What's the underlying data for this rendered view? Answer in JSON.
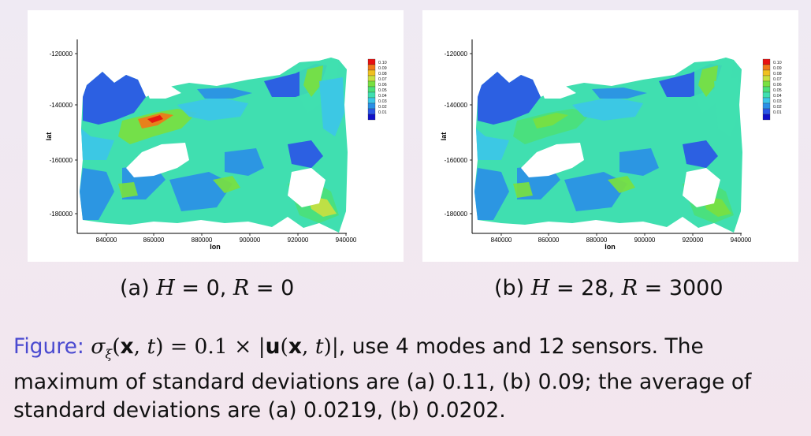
{
  "colors": {
    "levels": [
      "#1010c8",
      "#2a55e6",
      "#2a8fe6",
      "#3cc6e8",
      "#40dfb0",
      "#4be07a",
      "#78e040",
      "#c8e040",
      "#f0c020",
      "#f07818",
      "#e81010"
    ],
    "fig_label": "#4a4ad0"
  },
  "panels": [
    {
      "id": "a",
      "ylabel": "lat",
      "xlabel": "lon",
      "yticks": [
        "-120000",
        "-140000",
        "-160000",
        "-180000"
      ],
      "xticks": [
        "840000",
        "860000",
        "880000",
        "900000",
        "920000",
        "940000"
      ],
      "legend": [
        "0.10",
        "0.09",
        "0.08",
        "0.07",
        "0.06",
        "0.05",
        "0.04",
        "0.03",
        "0.02",
        "0.01"
      ],
      "caption_prefix": "(a)",
      "H_value": "0",
      "R_value": "0"
    },
    {
      "id": "b",
      "ylabel": "lat",
      "xlabel": "lon",
      "yticks": [
        "-120000",
        "-140000",
        "-160000",
        "-180000"
      ],
      "xticks": [
        "840000",
        "860000",
        "880000",
        "900000",
        "920000",
        "940000"
      ],
      "legend": [
        "0.10",
        "0.09",
        "0.08",
        "0.07",
        "0.06",
        "0.05",
        "0.04",
        "0.03",
        "0.02",
        "0.01"
      ],
      "caption_prefix": "(b)",
      "H_value": "28",
      "R_value": "3000"
    }
  ],
  "caption": {
    "label": "Figure:",
    "sigma_eq": "= 0.1 ×",
    "text_part1": ", use 4 modes and 12 sensors. The maximum of standard deviations are (a) 0.11, (b) 0.09; the average of standard deviations are (a) 0.0219, (b) 0.0202."
  }
}
